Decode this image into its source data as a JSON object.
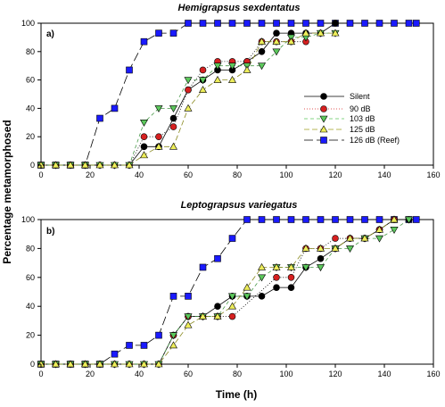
{
  "shared": {
    "xlabel": "Time (h)",
    "ylabel": "Percentage metamorphosed",
    "series_styles": [
      {
        "name": "Silent",
        "color": "#000000",
        "marker": "circle",
        "dash": ""
      },
      {
        "name": "90 dB",
        "color": "#d62020",
        "marker": "circle",
        "dash": "1,2"
      },
      {
        "name": "103 dB",
        "color": "#5cc85c",
        "marker": "triangle-down",
        "dash": "4,3"
      },
      {
        "name": "125 dB",
        "color": "#eded5a",
        "marker": "triangle-up",
        "dash": "6,3"
      },
      {
        "name": "126 dB (Reef)",
        "color": "#1a1aff",
        "marker": "square",
        "dash": "10,4"
      }
    ]
  },
  "chart_data": [
    {
      "type": "line",
      "title": "Hemigrapsus sexdentatus",
      "panel_label": "a)",
      "xlim": [
        0,
        160
      ],
      "ylim": [
        0,
        100
      ],
      "xticks": [
        "0",
        "20",
        "40",
        "60",
        "80",
        "100",
        "120",
        "140",
        "160"
      ],
      "yticks": [
        "0",
        "20",
        "40",
        "60",
        "80",
        "100"
      ],
      "legend": {
        "position": "center-right",
        "entries": [
          "Silent",
          "90 dB",
          "103 dB",
          "125 dB",
          "126 dB (Reef)"
        ]
      },
      "series": [
        {
          "name": "Silent",
          "points": [
            [
              0,
              0
            ],
            [
              6,
              0
            ],
            [
              12,
              0
            ],
            [
              18,
              0
            ],
            [
              24,
              0
            ],
            [
              30,
              0
            ],
            [
              36,
              0
            ],
            [
              42,
              13
            ],
            [
              48,
              13
            ],
            [
              54,
              33
            ],
            [
              60,
              53
            ],
            [
              66,
              60
            ],
            [
              72,
              67
            ],
            [
              78,
              67
            ],
            [
              84,
              73
            ],
            [
              90,
              80
            ],
            [
              96,
              93
            ],
            [
              102,
              93
            ],
            [
              108,
              93
            ],
            [
              114,
              93
            ],
            [
              120,
              100
            ]
          ]
        },
        {
          "name": "90 dB",
          "points": [
            [
              0,
              0
            ],
            [
              6,
              0
            ],
            [
              12,
              0
            ],
            [
              18,
              0
            ],
            [
              24,
              0
            ],
            [
              30,
              0
            ],
            [
              36,
              0
            ],
            [
              42,
              20
            ],
            [
              48,
              20
            ],
            [
              54,
              27
            ],
            [
              60,
              53
            ],
            [
              66,
              67
            ],
            [
              72,
              73
            ],
            [
              78,
              73
            ],
            [
              84,
              73
            ],
            [
              90,
              87
            ],
            [
              96,
              87
            ],
            [
              102,
              87
            ],
            [
              108,
              87
            ]
          ]
        },
        {
          "name": "103 dB",
          "points": [
            [
              0,
              0
            ],
            [
              6,
              0
            ],
            [
              12,
              0
            ],
            [
              18,
              0
            ],
            [
              24,
              0
            ],
            [
              30,
              0
            ],
            [
              36,
              0
            ],
            [
              42,
              30
            ],
            [
              48,
              40
            ],
            [
              54,
              40
            ],
            [
              60,
              60
            ],
            [
              66,
              60
            ],
            [
              72,
              70
            ],
            [
              78,
              70
            ],
            [
              84,
              70
            ],
            [
              90,
              70
            ],
            [
              96,
              80
            ],
            [
              102,
              90
            ],
            [
              108,
              90
            ],
            [
              114,
              93
            ],
            [
              120,
              93
            ]
          ]
        },
        {
          "name": "125 dB",
          "points": [
            [
              0,
              0
            ],
            [
              6,
              0
            ],
            [
              12,
              0
            ],
            [
              18,
              0
            ],
            [
              24,
              0
            ],
            [
              30,
              0
            ],
            [
              36,
              0
            ],
            [
              42,
              7
            ],
            [
              48,
              13
            ],
            [
              54,
              13
            ],
            [
              60,
              40
            ],
            [
              66,
              53
            ],
            [
              72,
              60
            ],
            [
              78,
              60
            ],
            [
              84,
              67
            ],
            [
              90,
              87
            ],
            [
              96,
              87
            ],
            [
              102,
              87
            ],
            [
              108,
              93
            ],
            [
              114,
              93
            ],
            [
              120,
              93
            ]
          ]
        },
        {
          "name": "126 dB (Reef)",
          "points": [
            [
              0,
              0
            ],
            [
              6,
              0
            ],
            [
              12,
              0
            ],
            [
              18,
              0
            ],
            [
              24,
              33
            ],
            [
              30,
              40
            ],
            [
              36,
              67
            ],
            [
              42,
              87
            ],
            [
              48,
              93
            ],
            [
              54,
              93
            ],
            [
              60,
              100
            ],
            [
              66,
              100
            ],
            [
              72,
              100
            ],
            [
              78,
              100
            ],
            [
              84,
              100
            ],
            [
              90,
              100
            ],
            [
              96,
              100
            ],
            [
              102,
              100
            ],
            [
              108,
              100
            ],
            [
              114,
              100
            ],
            [
              120,
              100
            ],
            [
              126,
              100
            ],
            [
              132,
              100
            ],
            [
              138,
              100
            ],
            [
              144,
              100
            ],
            [
              150,
              100
            ],
            [
              153,
              100
            ]
          ]
        }
      ]
    },
    {
      "type": "line",
      "title": "Leptograpsus variegatus",
      "panel_label": "b)",
      "xlim": [
        0,
        160
      ],
      "ylim": [
        0,
        100
      ],
      "xticks": [
        "0",
        "20",
        "40",
        "60",
        "80",
        "100",
        "120",
        "140",
        "160"
      ],
      "yticks": [
        "0",
        "20",
        "40",
        "60",
        "80",
        "100"
      ],
      "series": [
        {
          "name": "Silent",
          "points": [
            [
              0,
              0
            ],
            [
              6,
              0
            ],
            [
              12,
              0
            ],
            [
              18,
              0
            ],
            [
              24,
              0
            ],
            [
              30,
              0
            ],
            [
              36,
              0
            ],
            [
              42,
              0
            ],
            [
              48,
              0
            ],
            [
              54,
              20
            ],
            [
              60,
              33
            ],
            [
              66,
              33
            ],
            [
              72,
              40
            ],
            [
              78,
              47
            ],
            [
              84,
              47
            ],
            [
              90,
              47
            ],
            [
              96,
              53
            ],
            [
              102,
              53
            ],
            [
              108,
              67
            ],
            [
              114,
              73
            ],
            [
              120,
              80
            ],
            [
              126,
              87
            ],
            [
              132,
              87
            ],
            [
              138,
              93
            ],
            [
              144,
              100
            ],
            [
              150,
              100
            ]
          ]
        },
        {
          "name": "90 dB",
          "points": [
            [
              0,
              0
            ],
            [
              6,
              0
            ],
            [
              12,
              0
            ],
            [
              18,
              0
            ],
            [
              24,
              0
            ],
            [
              30,
              0
            ],
            [
              36,
              0
            ],
            [
              42,
              0
            ],
            [
              48,
              0
            ],
            [
              54,
              20
            ],
            [
              60,
              33
            ],
            [
              66,
              33
            ],
            [
              72,
              33
            ],
            [
              78,
              33
            ],
            [
              96,
              60
            ],
            [
              102,
              60
            ],
            [
              108,
              80
            ],
            [
              114,
              80
            ],
            [
              120,
              87
            ],
            [
              126,
              87
            ],
            [
              132,
              87
            ],
            [
              138,
              93
            ],
            [
              144,
              100
            ]
          ]
        },
        {
          "name": "103 dB",
          "points": [
            [
              0,
              0
            ],
            [
              6,
              0
            ],
            [
              12,
              0
            ],
            [
              18,
              0
            ],
            [
              24,
              0
            ],
            [
              30,
              0
            ],
            [
              36,
              0
            ],
            [
              42,
              0
            ],
            [
              48,
              0
            ],
            [
              54,
              20
            ],
            [
              60,
              33
            ],
            [
              66,
              33
            ],
            [
              72,
              33
            ],
            [
              78,
              47
            ],
            [
              84,
              47
            ],
            [
              90,
              60
            ],
            [
              96,
              67
            ],
            [
              102,
              67
            ],
            [
              108,
              67
            ],
            [
              114,
              67
            ],
            [
              120,
              80
            ],
            [
              126,
              80
            ],
            [
              132,
              87
            ],
            [
              138,
              87
            ],
            [
              144,
              93
            ],
            [
              150,
              100
            ]
          ]
        },
        {
          "name": "125 dB",
          "points": [
            [
              0,
              0
            ],
            [
              6,
              0
            ],
            [
              12,
              0
            ],
            [
              18,
              0
            ],
            [
              24,
              0
            ],
            [
              30,
              0
            ],
            [
              36,
              0
            ],
            [
              42,
              0
            ],
            [
              48,
              0
            ],
            [
              54,
              13
            ],
            [
              60,
              27
            ],
            [
              66,
              33
            ],
            [
              72,
              33
            ],
            [
              78,
              40
            ],
            [
              84,
              53
            ],
            [
              90,
              67
            ],
            [
              96,
              67
            ],
            [
              102,
              67
            ],
            [
              108,
              80
            ],
            [
              114,
              80
            ],
            [
              120,
              80
            ],
            [
              126,
              87
            ],
            [
              132,
              87
            ],
            [
              138,
              93
            ],
            [
              144,
              100
            ]
          ]
        },
        {
          "name": "126 dB (Reef)",
          "points": [
            [
              0,
              0
            ],
            [
              6,
              0
            ],
            [
              12,
              0
            ],
            [
              18,
              0
            ],
            [
              24,
              0
            ],
            [
              30,
              7
            ],
            [
              36,
              13
            ],
            [
              42,
              13
            ],
            [
              48,
              20
            ],
            [
              54,
              47
            ],
            [
              60,
              47
            ],
            [
              66,
              67
            ],
            [
              72,
              73
            ],
            [
              78,
              87
            ],
            [
              84,
              100
            ],
            [
              90,
              100
            ],
            [
              96,
              100
            ],
            [
              102,
              100
            ],
            [
              108,
              100
            ],
            [
              114,
              100
            ],
            [
              120,
              100
            ],
            [
              126,
              100
            ],
            [
              132,
              100
            ],
            [
              138,
              100
            ],
            [
              144,
              100
            ],
            [
              150,
              100
            ],
            [
              153,
              100
            ]
          ]
        }
      ]
    }
  ]
}
